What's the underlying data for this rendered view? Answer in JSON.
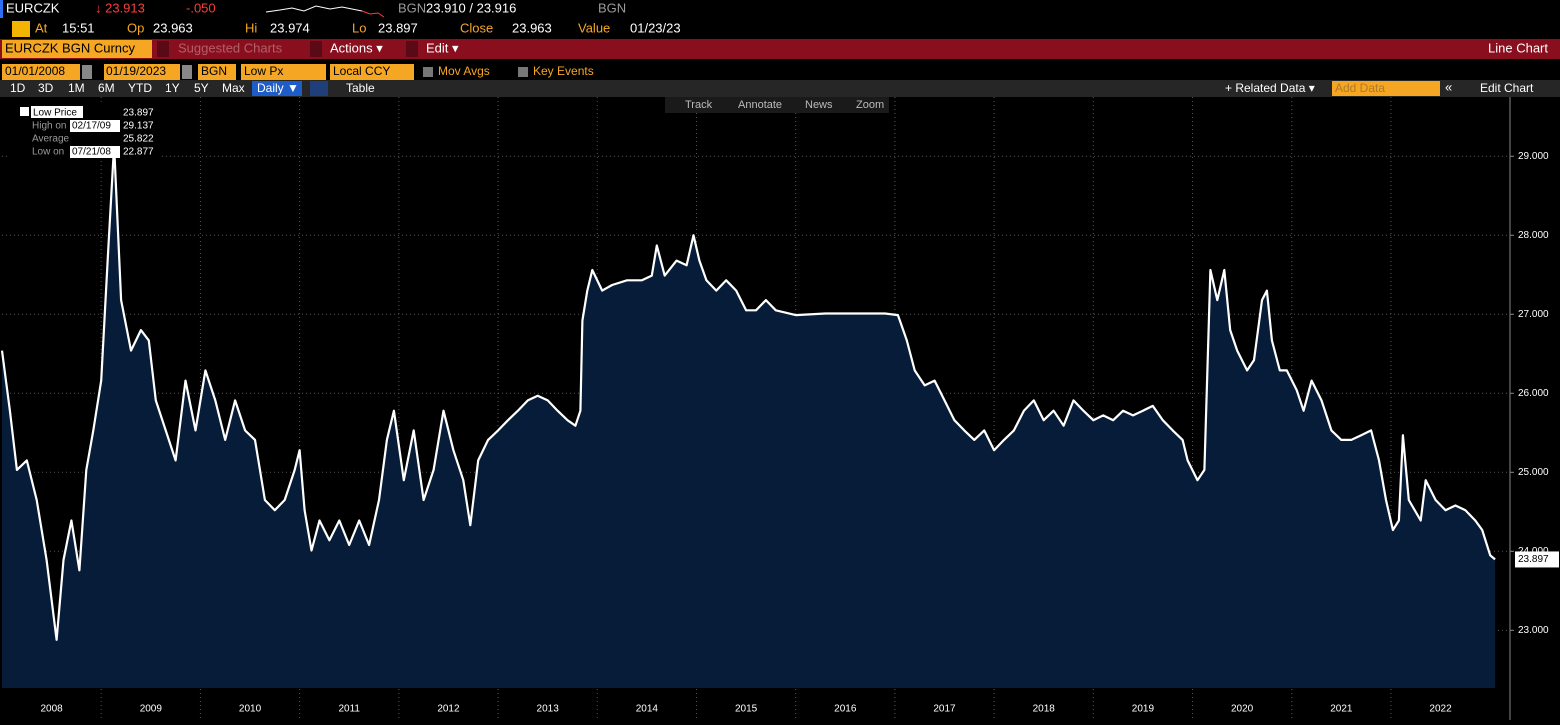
{
  "header": {
    "ticker": "EURCZK",
    "last": "↓ 23.913",
    "change": "-.050",
    "quote_ccy": "BGN",
    "bid_ask": "23.910 / 23.916",
    "ccy": "BGN"
  },
  "quote": [
    {
      "label": "At",
      "value": "15:51"
    },
    {
      "label": "Op",
      "value": "23.963"
    },
    {
      "label": "Hi",
      "value": "23.974"
    },
    {
      "label": "Lo",
      "value": "23.897"
    },
    {
      "label": "Close",
      "value": "23.963"
    },
    {
      "label": "Value",
      "value": "01/23/23"
    }
  ],
  "menu": {
    "security": "EURCZK BGN Curncy",
    "suggested": "Suggested Charts",
    "actions": "Actions ▾",
    "edit": "Edit ▾",
    "chart_kind": "Line Chart"
  },
  "settings": {
    "start": "01/01/2008",
    "end": "01/19/2023",
    "source": "BGN",
    "field": "Low Px",
    "currency": "Local CCY",
    "mov_avgs": "Mov Avgs",
    "key_events": "Key Events"
  },
  "periods": [
    "1D",
    "3D",
    "1M",
    "6M",
    "YTD",
    "1Y",
    "5Y",
    "Max"
  ],
  "toolbar": {
    "frequency": "Daily ▼",
    "table": "Table",
    "related": "+ Related Data ▾",
    "add_data": "Add Data",
    "collapse": "«",
    "edit_chart": "Edit Chart"
  },
  "chart_tools": [
    "Track",
    "Annotate",
    "News",
    "Zoom"
  ],
  "chart_data": {
    "type": "line",
    "x": [
      2008.0,
      2008.08,
      2008.15,
      2008.25,
      2008.35,
      2008.45,
      2008.55,
      2008.62,
      2008.7,
      2008.78,
      2008.85,
      2008.92,
      2009.0,
      2009.07,
      2009.13,
      2009.2,
      2009.3,
      2009.4,
      2009.48,
      2009.55,
      2009.65,
      2009.75,
      2009.85,
      2009.95,
      2010.05,
      2010.15,
      2010.25,
      2010.35,
      2010.45,
      2010.55,
      2010.65,
      2010.75,
      2010.85,
      2010.95,
      2011.0,
      2011.05,
      2011.12,
      2011.2,
      2011.3,
      2011.4,
      2011.5,
      2011.6,
      2011.7,
      2011.8,
      2011.88,
      2011.95,
      2012.05,
      2012.15,
      2012.25,
      2012.35,
      2012.45,
      2012.55,
      2012.65,
      2012.72,
      2012.8,
      2012.9,
      2013.0,
      2013.1,
      2013.2,
      2013.3,
      2013.4,
      2013.5,
      2013.6,
      2013.7,
      2013.78,
      2013.83,
      2013.85,
      2013.9,
      2013.95,
      2014.05,
      2014.15,
      2014.3,
      2014.45,
      2014.55,
      2014.6,
      2014.68,
      2014.8,
      2014.9,
      2014.97,
      2015.03,
      2015.1,
      2015.2,
      2015.3,
      2015.4,
      2015.5,
      2015.6,
      2015.7,
      2015.8,
      2016.0,
      2016.3,
      2016.6,
      2016.9,
      2017.03,
      2017.05,
      2017.12,
      2017.2,
      2017.3,
      2017.4,
      2017.5,
      2017.6,
      2017.7,
      2017.8,
      2017.9,
      2018.0,
      2018.1,
      2018.2,
      2018.3,
      2018.4,
      2018.5,
      2018.6,
      2018.7,
      2018.8,
      2018.9,
      2019.0,
      2019.1,
      2019.2,
      2019.3,
      2019.4,
      2019.5,
      2019.6,
      2019.7,
      2019.8,
      2019.9,
      2019.95,
      2020.05,
      2020.12,
      2020.18,
      2020.25,
      2020.32,
      2020.38,
      2020.45,
      2020.55,
      2020.62,
      2020.7,
      2020.75,
      2020.8,
      2020.88,
      2020.95,
      2021.05,
      2021.12,
      2021.2,
      2021.3,
      2021.4,
      2021.5,
      2021.6,
      2021.7,
      2021.8,
      2021.88,
      2021.95,
      2022.02,
      2022.08,
      2022.12,
      2022.18,
      2022.3,
      2022.35,
      2022.45,
      2022.55,
      2022.65,
      2022.75,
      2022.85,
      2022.92,
      2023.0,
      2023.05
    ],
    "series": [
      {
        "name": "Low Price",
        "color": "#ffffff",
        "fill": "#061c38",
        "values": [
          26.54,
          25.78,
          25.03,
          25.15,
          24.65,
          23.89,
          22.88,
          23.89,
          24.39,
          23.76,
          25.03,
          25.53,
          26.16,
          27.81,
          29.14,
          27.18,
          26.54,
          26.8,
          26.67,
          25.91,
          25.53,
          25.15,
          26.16,
          25.53,
          26.29,
          25.91,
          25.41,
          25.91,
          25.53,
          25.41,
          24.65,
          24.52,
          24.65,
          25.03,
          25.28,
          24.52,
          24.01,
          24.39,
          24.14,
          24.39,
          24.08,
          24.39,
          24.08,
          24.65,
          25.41,
          25.78,
          24.9,
          25.53,
          24.65,
          25.03,
          25.78,
          25.28,
          24.9,
          24.33,
          25.15,
          25.41,
          25.53,
          25.66,
          25.78,
          25.91,
          25.97,
          25.91,
          25.78,
          25.66,
          25.59,
          25.78,
          26.92,
          27.3,
          27.56,
          27.3,
          27.37,
          27.43,
          27.43,
          27.49,
          27.87,
          27.49,
          27.68,
          27.62,
          28.0,
          27.68,
          27.43,
          27.3,
          27.43,
          27.3,
          27.05,
          27.05,
          27.18,
          27.05,
          26.99,
          27.01,
          27.01,
          27.01,
          26.99,
          26.92,
          26.67,
          26.29,
          26.1,
          26.16,
          25.91,
          25.66,
          25.53,
          25.41,
          25.53,
          25.28,
          25.41,
          25.53,
          25.78,
          25.91,
          25.66,
          25.78,
          25.59,
          25.91,
          25.78,
          25.66,
          25.72,
          25.66,
          25.78,
          25.72,
          25.78,
          25.84,
          25.66,
          25.53,
          25.41,
          25.15,
          24.9,
          25.03,
          27.56,
          27.18,
          27.56,
          26.8,
          26.54,
          26.29,
          26.42,
          27.18,
          27.3,
          26.67,
          26.29,
          26.29,
          26.04,
          25.78,
          26.16,
          25.91,
          25.53,
          25.41,
          25.41,
          25.47,
          25.53,
          25.15,
          24.65,
          24.27,
          24.39,
          25.47,
          24.65,
          24.39,
          24.9,
          24.65,
          24.52,
          24.58,
          24.52,
          24.39,
          24.27,
          23.95,
          23.897
        ]
      }
    ],
    "last_label": "23.897",
    "stats": [
      {
        "label": "High on",
        "date": "02/17/09",
        "value": "29.137"
      },
      {
        "label": "Average",
        "value": "25.822"
      },
      {
        "label": "Low on",
        "date": "07/21/08",
        "value": "22.877"
      }
    ],
    "legend_value": "23.897",
    "xlim": [
      2008,
      2023.2
    ],
    "xticks": [
      2008,
      2009,
      2010,
      2011,
      2012,
      2013,
      2014,
      2015,
      2016,
      2017,
      2018,
      2019,
      2020,
      2021,
      2022
    ],
    "ylim": [
      22.27,
      29.75
    ],
    "yticks": [
      {
        "value": 23,
        "label": "23.000"
      },
      {
        "value": 24,
        "label": "24.000"
      },
      {
        "value": 25,
        "label": "25.000"
      },
      {
        "value": 26,
        "label": "26.000"
      },
      {
        "value": 27,
        "label": "27.000"
      },
      {
        "value": 28,
        "label": "28.000"
      },
      {
        "value": 29,
        "label": "29.000"
      }
    ],
    "grid": true
  }
}
